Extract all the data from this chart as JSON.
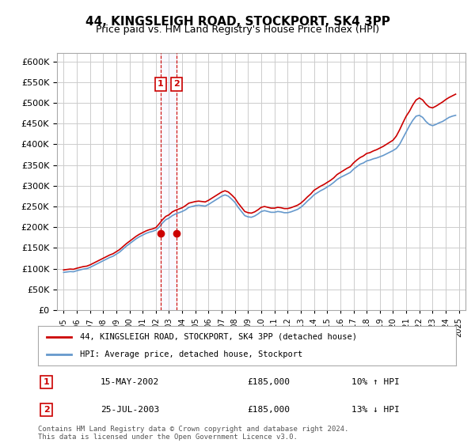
{
  "title1": "44, KINGSLEIGH ROAD, STOCKPORT, SK4 3PP",
  "title2": "Price paid vs. HM Land Registry's House Price Index (HPI)",
  "ylabel_ticks": [
    "£0",
    "£50K",
    "£100K",
    "£150K",
    "£200K",
    "£250K",
    "£300K",
    "£350K",
    "£400K",
    "£450K",
    "£500K",
    "£550K",
    "£600K"
  ],
  "ylim": [
    0,
    620000
  ],
  "ytick_vals": [
    0,
    50000,
    100000,
    150000,
    200000,
    250000,
    300000,
    350000,
    400000,
    450000,
    500000,
    550000,
    600000
  ],
  "xlabel_years": [
    "1995",
    "1996",
    "1997",
    "1998",
    "1999",
    "2000",
    "2001",
    "2002",
    "2003",
    "2004",
    "2005",
    "2006",
    "2007",
    "2008",
    "2009",
    "2010",
    "2011",
    "2012",
    "2013",
    "2014",
    "2015",
    "2016",
    "2017",
    "2018",
    "2019",
    "2020",
    "2021",
    "2022",
    "2023",
    "2024",
    "2025"
  ],
  "legend1_label": "44, KINGSLEIGH ROAD, STOCKPORT, SK4 3PP (detached house)",
  "legend2_label": "HPI: Average price, detached house, Stockport",
  "transaction1_date": "15-MAY-2002",
  "transaction1_price": "£185,000",
  "transaction1_hpi": "10% ↑ HPI",
  "transaction2_date": "25-JUL-2003",
  "transaction2_price": "£185,000",
  "transaction2_hpi": "13% ↓ HPI",
  "footer": "Contains HM Land Registry data © Crown copyright and database right 2024.\nThis data is licensed under the Open Government Licence v3.0.",
  "line_color_red": "#cc0000",
  "line_color_blue": "#6699cc",
  "bg_color": "#ffffff",
  "grid_color": "#cccccc",
  "transaction_box_color": "#cc0000",
  "shade_color": "#ddddff",
  "hpi_years": [
    1995.0,
    1995.25,
    1995.5,
    1995.75,
    1996.0,
    1996.25,
    1996.5,
    1996.75,
    1997.0,
    1997.25,
    1997.5,
    1997.75,
    1998.0,
    1998.25,
    1998.5,
    1998.75,
    1999.0,
    1999.25,
    1999.5,
    1999.75,
    2000.0,
    2000.25,
    2000.5,
    2000.75,
    2001.0,
    2001.25,
    2001.5,
    2001.75,
    2002.0,
    2002.25,
    2002.5,
    2002.75,
    2003.0,
    2003.25,
    2003.5,
    2003.75,
    2004.0,
    2004.25,
    2004.5,
    2004.75,
    2005.0,
    2005.25,
    2005.5,
    2005.75,
    2006.0,
    2006.25,
    2006.5,
    2006.75,
    2007.0,
    2007.25,
    2007.5,
    2007.75,
    2008.0,
    2008.25,
    2008.5,
    2008.75,
    2009.0,
    2009.25,
    2009.5,
    2009.75,
    2010.0,
    2010.25,
    2010.5,
    2010.75,
    2011.0,
    2011.25,
    2011.5,
    2011.75,
    2012.0,
    2012.25,
    2012.5,
    2012.75,
    2013.0,
    2013.25,
    2013.5,
    2013.75,
    2014.0,
    2014.25,
    2014.5,
    2014.75,
    2015.0,
    2015.25,
    2015.5,
    2015.75,
    2016.0,
    2016.25,
    2016.5,
    2016.75,
    2017.0,
    2017.25,
    2017.5,
    2017.75,
    2018.0,
    2018.25,
    2018.5,
    2018.75,
    2019.0,
    2019.25,
    2019.5,
    2019.75,
    2020.0,
    2020.25,
    2020.5,
    2020.75,
    2021.0,
    2021.25,
    2021.5,
    2021.75,
    2022.0,
    2022.25,
    2022.5,
    2022.75,
    2023.0,
    2023.25,
    2023.5,
    2023.75,
    2024.0,
    2024.25,
    2024.5,
    2024.75
  ],
  "hpi_values": [
    91000,
    92000,
    93000,
    92500,
    95000,
    97000,
    99000,
    100000,
    103000,
    107000,
    111000,
    115000,
    119000,
    123000,
    127000,
    130000,
    135000,
    140000,
    147000,
    154000,
    160000,
    166000,
    172000,
    177000,
    181000,
    185000,
    188000,
    190000,
    193000,
    200000,
    210000,
    218000,
    222000,
    228000,
    232000,
    235000,
    238000,
    242000,
    248000,
    250000,
    252000,
    253000,
    252000,
    251000,
    255000,
    260000,
    265000,
    270000,
    275000,
    278000,
    275000,
    268000,
    260000,
    248000,
    238000,
    228000,
    225000,
    224000,
    227000,
    232000,
    238000,
    240000,
    238000,
    236000,
    236000,
    238000,
    237000,
    235000,
    235000,
    237000,
    240000,
    243000,
    248000,
    255000,
    263000,
    270000,
    278000,
    283000,
    288000,
    292000,
    297000,
    302000,
    308000,
    315000,
    320000,
    324000,
    328000,
    332000,
    340000,
    346000,
    352000,
    355000,
    360000,
    362000,
    365000,
    367000,
    370000,
    373000,
    377000,
    381000,
    385000,
    390000,
    400000,
    415000,
    430000,
    445000,
    458000,
    468000,
    470000,
    465000,
    455000,
    448000,
    445000,
    448000,
    452000,
    455000,
    460000,
    465000,
    468000,
    470000
  ],
  "red_years": [
    1995.0,
    1995.25,
    1995.5,
    1995.75,
    1996.0,
    1996.25,
    1996.5,
    1996.75,
    1997.0,
    1997.25,
    1997.5,
    1997.75,
    1998.0,
    1998.25,
    1998.5,
    1998.75,
    1999.0,
    1999.25,
    1999.5,
    1999.75,
    2000.0,
    2000.25,
    2000.5,
    2000.75,
    2001.0,
    2001.25,
    2001.5,
    2001.75,
    2002.0,
    2002.25,
    2002.5,
    2002.75,
    2003.0,
    2003.25,
    2003.5,
    2003.75,
    2004.0,
    2004.25,
    2004.5,
    2004.75,
    2005.0,
    2005.25,
    2005.5,
    2005.75,
    2006.0,
    2006.25,
    2006.5,
    2006.75,
    2007.0,
    2007.25,
    2007.5,
    2007.75,
    2008.0,
    2008.25,
    2008.5,
    2008.75,
    2009.0,
    2009.25,
    2009.5,
    2009.75,
    2010.0,
    2010.25,
    2010.5,
    2010.75,
    2011.0,
    2011.25,
    2011.5,
    2011.75,
    2012.0,
    2012.25,
    2012.5,
    2012.75,
    2013.0,
    2013.25,
    2013.5,
    2013.75,
    2014.0,
    2014.25,
    2014.5,
    2014.75,
    2015.0,
    2015.25,
    2015.5,
    2015.75,
    2016.0,
    2016.25,
    2016.5,
    2016.75,
    2017.0,
    2017.25,
    2017.5,
    2017.75,
    2018.0,
    2018.25,
    2018.5,
    2018.75,
    2019.0,
    2019.25,
    2019.5,
    2019.75,
    2020.0,
    2020.25,
    2020.5,
    2020.75,
    2021.0,
    2021.25,
    2021.5,
    2021.75,
    2022.0,
    2022.25,
    2022.5,
    2022.75,
    2023.0,
    2023.25,
    2023.5,
    2023.75,
    2024.0,
    2024.25,
    2024.5,
    2024.75
  ],
  "red_values": [
    97000,
    98000,
    99000,
    98500,
    101000,
    103000,
    105000,
    106000,
    109000,
    113000,
    117000,
    121000,
    125000,
    129000,
    133000,
    136000,
    141000,
    146000,
    153000,
    160000,
    166000,
    172000,
    178000,
    183000,
    187000,
    191000,
    194000,
    196000,
    199000,
    208000,
    218000,
    226000,
    230000,
    237000,
    241000,
    244000,
    247000,
    252000,
    258000,
    260000,
    262000,
    263000,
    262000,
    261000,
    265000,
    270000,
    275000,
    280000,
    285000,
    288000,
    285000,
    278000,
    270000,
    258000,
    248000,
    238000,
    235000,
    234000,
    237000,
    242000,
    248000,
    250000,
    248000,
    246000,
    246000,
    248000,
    247000,
    245000,
    245000,
    247000,
    250000,
    253000,
    258000,
    265000,
    273000,
    280000,
    289000,
    294000,
    299000,
    303000,
    308000,
    313000,
    319000,
    327000,
    332000,
    337000,
    342000,
    346000,
    355000,
    362000,
    368000,
    372000,
    378000,
    380000,
    384000,
    387000,
    391000,
    395000,
    400000,
    405000,
    410000,
    420000,
    435000,
    452000,
    468000,
    480000,
    495000,
    507000,
    512000,
    507000,
    497000,
    490000,
    488000,
    492000,
    497000,
    502000,
    508000,
    513000,
    517000,
    521000
  ],
  "transaction1_x": 2002.37,
  "transaction2_x": 2003.56,
  "transaction1_y": 185000,
  "transaction2_y": 185000,
  "xlim_left": 1994.5,
  "xlim_right": 2025.5
}
